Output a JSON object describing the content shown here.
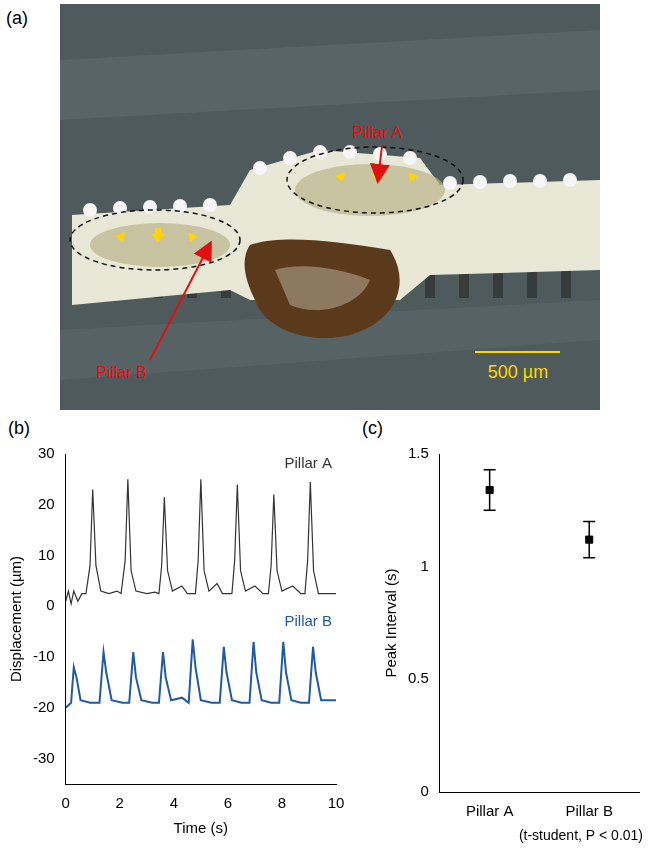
{
  "photo": {
    "label": "(a)",
    "annotations": [
      "Pillar A",
      "Pillar B"
    ],
    "scale_bar": "500 µm"
  },
  "chart_data": [
    {
      "label": "(b)",
      "type": "line",
      "x_label": "Time (s)",
      "y_label": "Displacement (µm)",
      "xlim": [
        0,
        10
      ],
      "xticks": [
        0,
        2,
        4,
        6,
        8,
        10
      ],
      "ylim": [
        -35,
        30
      ],
      "yticks": [
        -30,
        -20,
        -10,
        0,
        10,
        20,
        30
      ],
      "grid": false,
      "series": [
        {
          "name": "Pillar A",
          "color": "#333333",
          "x": [
            0,
            0.1,
            0.2,
            0.3,
            0.45,
            0.6,
            0.75,
            0.9,
            1.0,
            1.12,
            1.3,
            1.6,
            1.9,
            2.05,
            2.2,
            2.3,
            2.42,
            2.6,
            3.0,
            3.3,
            3.45,
            3.55,
            3.65,
            3.77,
            3.95,
            4.3,
            4.5,
            4.8,
            4.9,
            5.0,
            5.12,
            5.3,
            5.6,
            5.8,
            6.15,
            6.25,
            6.35,
            6.47,
            6.65,
            7.0,
            7.3,
            7.5,
            7.6,
            7.7,
            7.82,
            8.0,
            8.4,
            8.7,
            8.85,
            8.95,
            9.05,
            9.17,
            9.35,
            9.7,
            10
          ],
          "values": [
            1,
            3,
            0.5,
            3,
            1,
            2.5,
            2.5,
            8,
            23,
            8,
            3,
            2.5,
            3,
            2.5,
            9,
            25,
            7,
            3,
            2.5,
            2.8,
            2.5,
            8,
            21.5,
            7,
            3,
            4,
            2.5,
            2.5,
            9,
            25,
            7,
            3,
            4.5,
            2.5,
            2.5,
            9,
            24,
            7,
            3,
            4,
            2.5,
            2.5,
            8,
            22,
            7,
            3,
            4,
            2.5,
            2.5,
            9,
            24.5,
            7,
            2.5,
            2.5,
            2.5
          ]
        },
        {
          "name": "Pillar B",
          "color": "#1f5aa6",
          "x": [
            0,
            0.2,
            0.3,
            0.4,
            0.55,
            0.9,
            1.25,
            1.4,
            1.5,
            1.7,
            2.1,
            2.35,
            2.5,
            2.6,
            2.8,
            3.2,
            3.45,
            3.6,
            3.7,
            3.9,
            4.3,
            4.55,
            4.7,
            4.8,
            5.0,
            5.4,
            5.7,
            5.85,
            5.95,
            6.15,
            6.5,
            6.8,
            6.95,
            7.05,
            7.25,
            7.6,
            7.9,
            8.05,
            8.15,
            8.35,
            8.7,
            9.0,
            9.15,
            9.25,
            9.45,
            9.8,
            10
          ],
          "values": [
            -20,
            -19,
            -12,
            -14,
            -18.5,
            -19,
            -19,
            -9,
            -13,
            -18.5,
            -19,
            -19,
            -9,
            -14,
            -18.5,
            -19,
            -19,
            -9,
            -14,
            -18.5,
            -18,
            -19,
            -6.5,
            -12,
            -18.5,
            -19,
            -19,
            -8,
            -13,
            -18.5,
            -19,
            -19,
            -7,
            -13,
            -18.5,
            -19,
            -19,
            -7,
            -13,
            -18.5,
            -19,
            -19,
            -8,
            -13,
            -18.5,
            -18.5,
            -18.5
          ]
        }
      ]
    },
    {
      "label": "(c)",
      "type": "scatter",
      "categories": [
        "Pillar A",
        "Pillar B"
      ],
      "values": [
        1.34,
        1.12
      ],
      "errors": [
        0.09,
        0.08
      ],
      "y_label": "Peak Interval (s)",
      "annotations": [
        "(t-student, P < 0.01)"
      ],
      "ylim": [
        0,
        1.5
      ],
      "yticks": [
        0,
        0.5,
        1,
        1.5
      ],
      "marker": "square",
      "color": "#000000",
      "grid": false
    }
  ]
}
